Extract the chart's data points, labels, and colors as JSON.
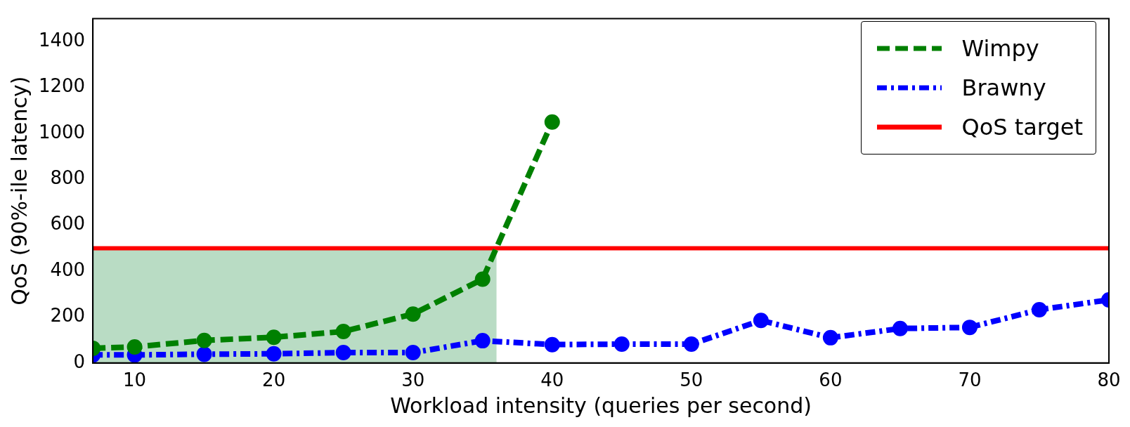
{
  "chart_data": {
    "type": "line",
    "xlabel": "Workload intensity (queries per second)",
    "ylabel": "QoS (90%-ile latency)",
    "xlim": [
      7,
      80
    ],
    "xticks": [
      10,
      20,
      30,
      40,
      50,
      60,
      70,
      80
    ],
    "ylim": [
      0,
      1500
    ],
    "yticks": [
      0,
      200,
      400,
      600,
      800,
      1000,
      1200,
      1400
    ],
    "grid": false,
    "legend": "top right",
    "marker": "circle",
    "series": [
      {
        "name": "Wimpy",
        "color": "#008000",
        "line_style": "dashed",
        "x": [
          7,
          10,
          15,
          20,
          25,
          30,
          35,
          40
        ],
        "values": [
          64,
          70,
          98,
          112,
          137,
          213,
          365,
          1050
        ]
      },
      {
        "name": "Brawny",
        "color": "#0000ff",
        "line_style": "dotted",
        "x": [
          7,
          10,
          15,
          20,
          25,
          30,
          35,
          40,
          45,
          50,
          55,
          60,
          65,
          70,
          75,
          80
        ],
        "values": [
          35,
          35,
          38,
          40,
          45,
          45,
          97,
          80,
          82,
          82,
          185,
          110,
          150,
          155,
          232,
          275
        ]
      }
    ],
    "ref_lines": [
      {
        "axis": "y",
        "value": 500,
        "label": "QoS target",
        "color": "#ff0000"
      }
    ],
    "bands": [
      {
        "axis": "x",
        "from": 7,
        "to": 36,
        "color": "#b9dcc4"
      }
    ]
  }
}
